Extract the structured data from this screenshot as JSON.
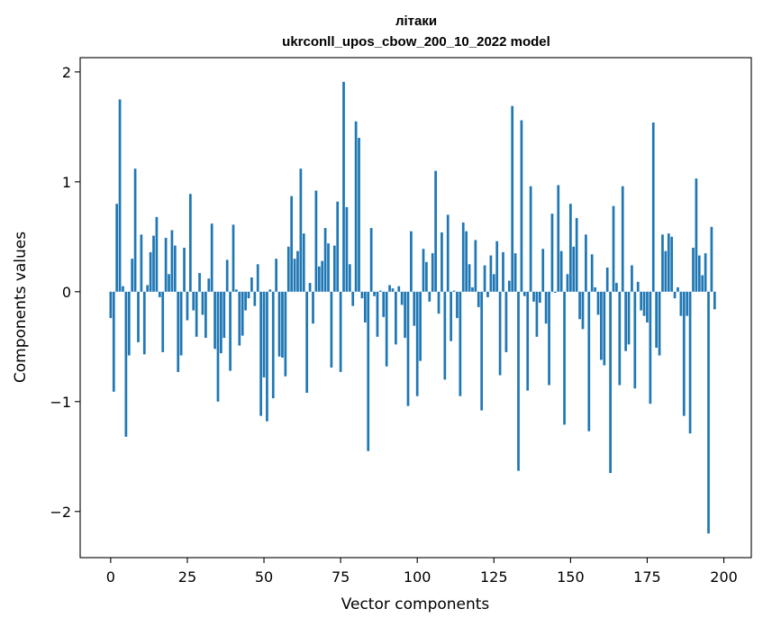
{
  "chart_data": {
    "type": "bar",
    "title": "літаки",
    "subtitle": "ukrconll_upos_cbow_200_10_2022 model",
    "xlabel": "Vector components",
    "ylabel": "Components values",
    "xlim": [
      -9.95,
      208.95
    ],
    "ylim": [
      -2.42,
      2.13
    ],
    "xticks": [
      0,
      25,
      50,
      75,
      100,
      125,
      150,
      175,
      200
    ],
    "yticks": [
      -2,
      -1,
      0,
      1,
      2
    ],
    "ytick_labels": [
      "−2",
      "−1",
      "0",
      "1",
      "2"
    ],
    "grid": false,
    "bar_color": "#1f77b4",
    "values": [
      -0.24,
      -0.91,
      0.8,
      1.75,
      0.05,
      -1.32,
      -0.58,
      0.3,
      1.12,
      -0.46,
      0.52,
      -0.57,
      0.06,
      0.36,
      0.51,
      0.68,
      -0.05,
      -0.55,
      0.49,
      0.16,
      0.56,
      0.42,
      -0.73,
      -0.58,
      0.4,
      -0.26,
      0.89,
      -0.17,
      -0.41,
      0.17,
      -0.21,
      -0.42,
      0.12,
      0.62,
      -0.52,
      -1.0,
      -0.56,
      -0.42,
      0.29,
      -0.72,
      0.61,
      0.02,
      -0.49,
      -0.4,
      -0.17,
      -0.06,
      0.13,
      -0.13,
      0.25,
      -1.13,
      -0.78,
      -1.18,
      0.02,
      -0.97,
      0.3,
      -0.59,
      -0.6,
      -0.77,
      0.41,
      0.87,
      0.3,
      0.37,
      1.12,
      0.53,
      -0.92,
      0.08,
      -0.29,
      0.92,
      0.23,
      0.28,
      0.58,
      0.44,
      -0.69,
      0.42,
      0.82,
      -0.73,
      1.91,
      0.77,
      0.25,
      -0.13,
      1.55,
      1.4,
      -0.06,
      -0.28,
      -1.45,
      0.58,
      -0.04,
      -0.41,
      0.01,
      -0.23,
      -0.68,
      0.06,
      0.03,
      -0.48,
      0.05,
      -0.12,
      -0.42,
      -1.04,
      0.55,
      -0.31,
      -0.95,
      -0.63,
      0.39,
      0.27,
      -0.09,
      0.35,
      1.1,
      -0.2,
      0.54,
      -0.8,
      0.7,
      -0.45,
      0.01,
      -0.24,
      -0.95,
      0.63,
      0.55,
      0.25,
      0.04,
      0.47,
      -0.14,
      -1.08,
      0.24,
      -0.05,
      0.33,
      0.16,
      0.46,
      -0.76,
      0.36,
      -0.55,
      0.1,
      1.69,
      0.35,
      -1.63,
      1.56,
      -0.04,
      -0.9,
      0.96,
      -0.09,
      -0.41,
      -0.1,
      0.39,
      -0.29,
      -0.85,
      0.71,
      -0.01,
      0.97,
      0.37,
      -1.21,
      0.16,
      0.8,
      0.41,
      0.67,
      -0.25,
      -0.34,
      0.52,
      -1.27,
      0.34,
      0.04,
      -0.21,
      -0.62,
      -0.67,
      0.22,
      -1.65,
      0.78,
      0.08,
      -0.85,
      0.96,
      -0.54,
      -0.48,
      0.24,
      -0.88,
      0.09,
      -0.17,
      -0.22,
      -0.28,
      -1.02,
      1.54,
      -0.51,
      -0.58,
      0.52,
      0.37,
      0.53,
      0.5,
      -0.06,
      0.04,
      -0.22,
      -1.13,
      -0.22,
      -1.29,
      0.4,
      1.03,
      0.33,
      0.15,
      0.35,
      -2.2,
      0.59,
      -0.16
    ]
  }
}
